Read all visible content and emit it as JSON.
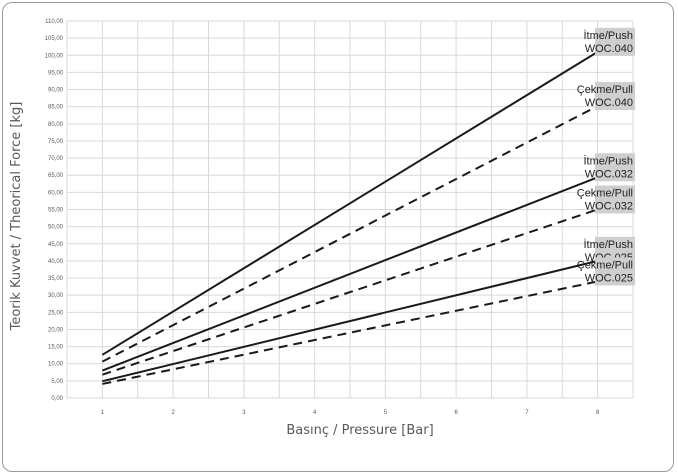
{
  "chart_data": {
    "type": "line",
    "xlabel": "Basınç / Pressure [Bar]",
    "ylabel": "Teorik Kuvvet / Theorical Force [kg]",
    "xlim": [
      0.5,
      8.5
    ],
    "ylim": [
      0,
      110
    ],
    "x_ticks": [
      "1",
      "2",
      "3",
      "4",
      "5",
      "6",
      "7",
      "8"
    ],
    "y_ticks": [
      "0,00",
      "5,00",
      "10,00",
      "15,00",
      "20,00",
      "25,00",
      "30,00",
      "35,00",
      "40,00",
      "45,00",
      "50,00",
      "55,00",
      "60,00",
      "65,00",
      "70,00",
      "75,00",
      "80,00",
      "85,00",
      "90,00",
      "95,00",
      "100,00",
      "105,00",
      "110,00"
    ],
    "grid": true,
    "series": [
      {
        "label_lines": [
          "İtme/Push",
          "WOC.040"
        ],
        "style": "solid",
        "x": [
          1,
          8
        ],
        "y": [
          12.6,
          101.0
        ]
      },
      {
        "label_lines": [
          "Çekme/Pull",
          "WOC.040"
        ],
        "style": "dashed",
        "x": [
          1,
          8
        ],
        "y": [
          10.6,
          85.2
        ]
      },
      {
        "label_lines": [
          "İtme/Push",
          "WOC.032"
        ],
        "style": "solid",
        "x": [
          1,
          8
        ],
        "y": [
          8.0,
          64.4
        ]
      },
      {
        "label_lines": [
          "Çekme/Pull",
          "WOC.032"
        ],
        "style": "dashed",
        "x": [
          1,
          8
        ],
        "y": [
          6.8,
          55.0
        ]
      },
      {
        "label_lines": [
          "İtme/Push",
          "WOC.025"
        ],
        "style": "solid",
        "x": [
          1,
          8
        ],
        "y": [
          4.9,
          40.0
        ]
      },
      {
        "label_lines": [
          "Çekme/Pull",
          "WOC.025"
        ],
        "style": "dashed",
        "x": [
          1,
          8
        ],
        "y": [
          4.1,
          34.0
        ]
      }
    ]
  }
}
